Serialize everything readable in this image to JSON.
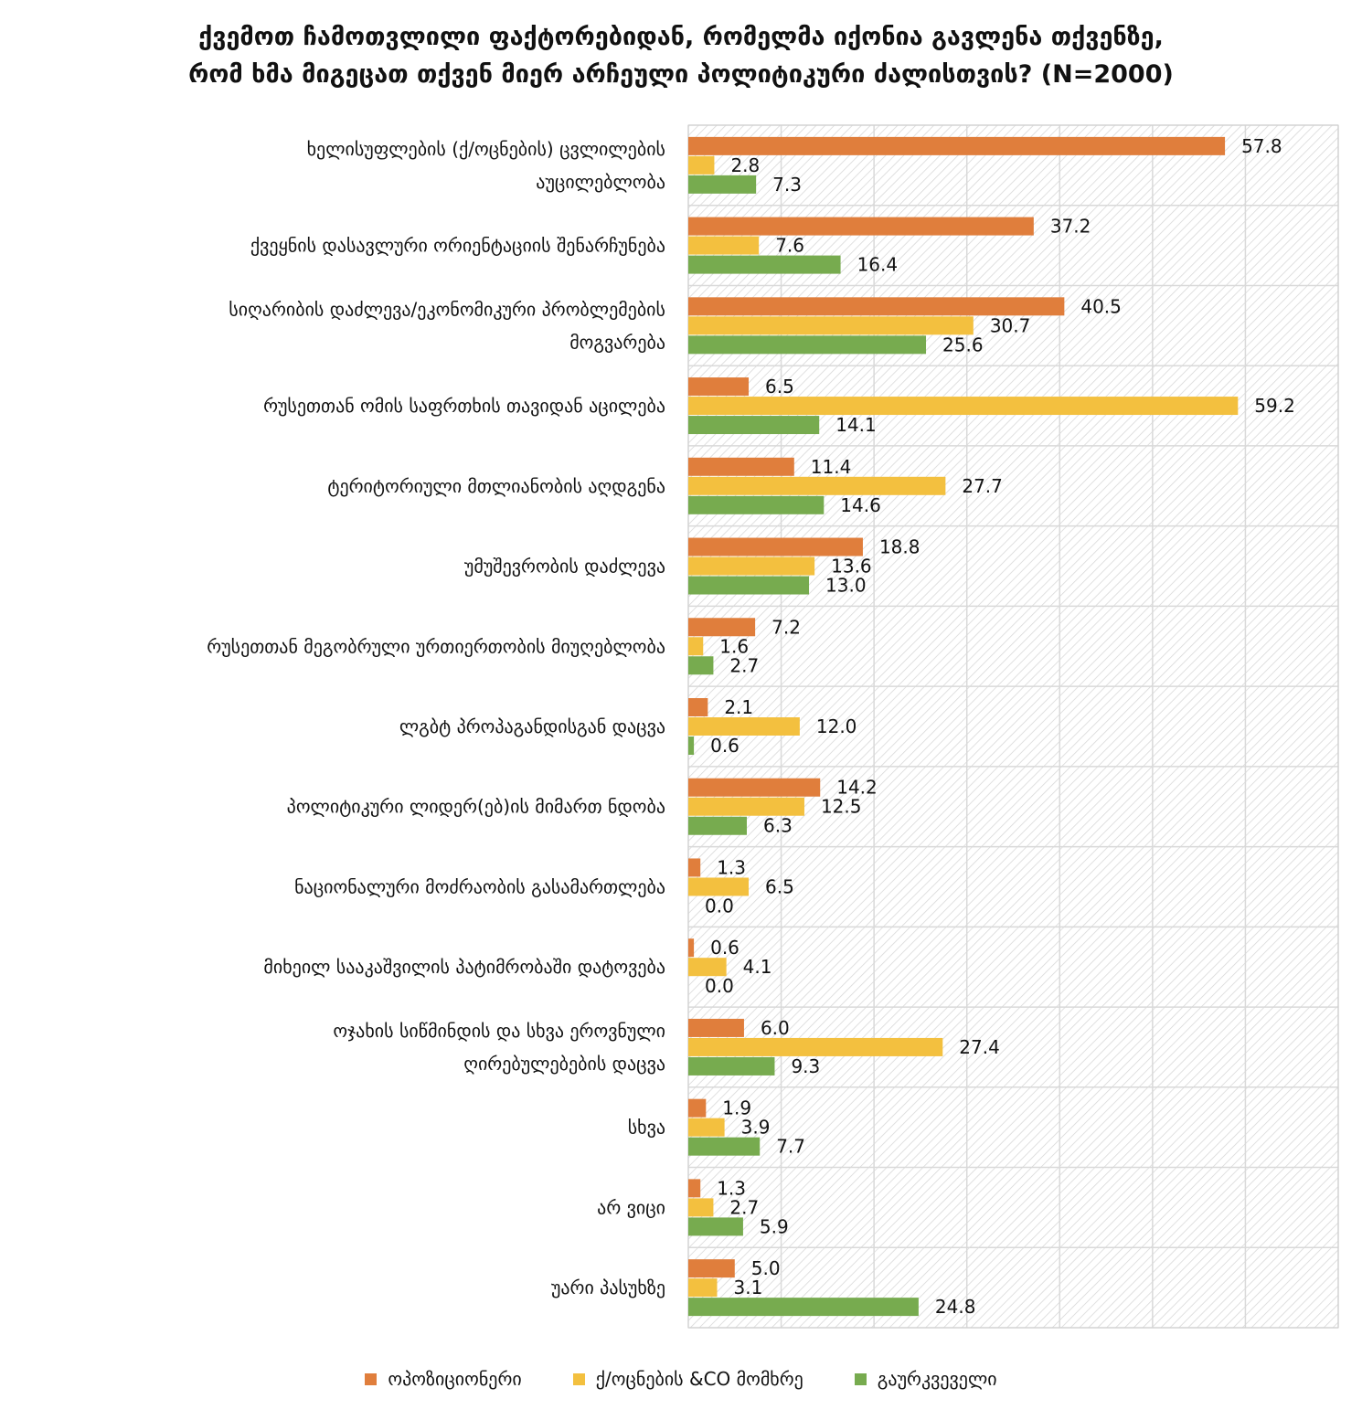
{
  "chart_data": {
    "type": "bar",
    "orientation": "horizontal",
    "title_lines": [
      "ქვემოთ ჩამოთვლილი ფაქტორებიდან, რომელმა იქონია გავლენა თქვენზე,",
      "რომ ხმა მიგეცათ თქვენ მიერ არჩეული პოლიტიკური ძალისთვის? (N=2000)"
    ],
    "categories": [
      [
        "ხელისუფლების (ქ/ოცნების) ცვლილების",
        "აუცილებლობა"
      ],
      [
        "ქვეყნის დასავლური ორიენტაციის შენარჩუნება"
      ],
      [
        "სიღარიბის დაძლევა/ეკონომიკური პრობლემების",
        "მოგვარება"
      ],
      [
        "რუსეთთან ომის საფრთხის თავიდან აცილება"
      ],
      [
        "ტერიტორიული მთლიანობის აღდგენა"
      ],
      [
        "უმუშევრობის დაძლევა"
      ],
      [
        "რუსეთთან მეგობრული ურთიერთობის მიუღებლობა"
      ],
      [
        "ლგბტ პროპაგანდისგან დაცვა"
      ],
      [
        "პოლიტიკური ლიდერ(ებ)ის მიმართ ნდობა"
      ],
      [
        "ნაციონალური მოძრაობის გასამართლება"
      ],
      [
        "მიხეილ სააკაშვილის პატიმრობაში დატოვება"
      ],
      [
        "ოჯახის სიწმინდის და სხვა ეროვნული",
        "ღირებულებების დაცვა"
      ],
      [
        "სხვა"
      ],
      [
        "არ ვიცი"
      ],
      [
        "უარი პასუხზე"
      ]
    ],
    "series": [
      {
        "name": "ოპოზიციონერი",
        "color": "#e07e3c",
        "values": [
          57.8,
          37.2,
          40.5,
          6.5,
          11.4,
          18.8,
          7.2,
          2.1,
          14.2,
          1.3,
          0.6,
          6.0,
          1.9,
          1.3,
          5.0
        ],
        "labels": [
          "57.8",
          "37.2",
          "40.5",
          "6.5",
          "11.4",
          "18.8",
          "7.2",
          "2.1",
          "14.2",
          "1.3",
          "0.6",
          "6.0",
          "1.9",
          "1.3",
          "5.0"
        ]
      },
      {
        "name": "ქ/ოცნების &CO მომხრე",
        "color": "#f3c03f",
        "values": [
          2.8,
          7.6,
          30.7,
          59.2,
          27.7,
          13.6,
          1.6,
          12.0,
          12.5,
          6.5,
          4.1,
          27.4,
          3.9,
          2.7,
          3.1
        ],
        "labels": [
          "2.8",
          "7.6",
          "30.7",
          "59.2",
          "27.7",
          "13.6",
          "1.6",
          "12.0",
          "12.5",
          "6.5",
          "4.1",
          "27.4",
          "3.9",
          "2.7",
          "3.1"
        ]
      },
      {
        "name": "გაურკვეველი",
        "color": "#77ab4f",
        "values": [
          7.3,
          16.4,
          25.6,
          14.1,
          14.6,
          13.0,
          2.7,
          0.6,
          6.3,
          0.0,
          0.0,
          9.3,
          7.7,
          5.9,
          24.8
        ],
        "labels": [
          "7.3",
          "16.4",
          "25.6",
          "14.1",
          "14.6",
          "13.0",
          "2.7",
          "0.6",
          "6.3",
          "0.0",
          "0.0",
          "9.3",
          "7.7",
          "5.9",
          "24.8"
        ]
      }
    ],
    "xlim": [
      0,
      70
    ],
    "grid": true,
    "legend_position": "bottom"
  }
}
